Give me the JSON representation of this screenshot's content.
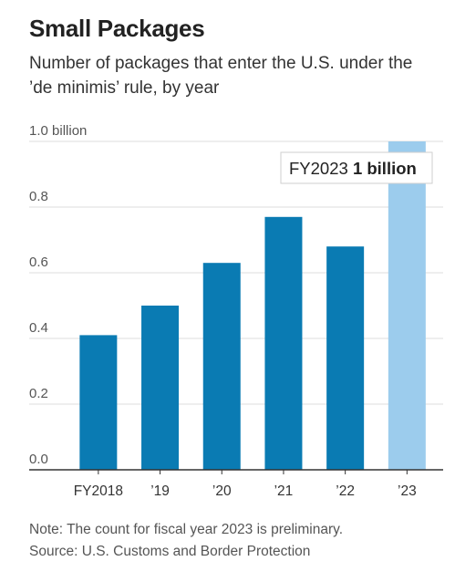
{
  "header": {
    "title": "Small Packages",
    "subtitle": "Number of packages that enter the U.S. under the ’de minimis’ rule, by year"
  },
  "chart_data": {
    "type": "bar",
    "categories": [
      "FY2018",
      "’19",
      "’20",
      "’21",
      "’22",
      "’23"
    ],
    "values": [
      0.41,
      0.5,
      0.63,
      0.77,
      0.68,
      1.0
    ],
    "y_unit": "billion",
    "ylim": [
      0,
      1.0
    ],
    "yticks": [
      0.0,
      0.2,
      0.4,
      0.6,
      0.8,
      1.0
    ],
    "ytick_labels": [
      "0.0",
      "0.2",
      "0.4",
      "0.6",
      "0.8",
      "1.0 billion"
    ],
    "grid": true,
    "colors": {
      "bar": "#0a7bb3",
      "highlight": "#9ccced",
      "grid": "#dcdcdc",
      "axis": "#333333"
    },
    "highlight_index": 5,
    "annotation": {
      "label": "FY2023",
      "value_text": "1 billion"
    }
  },
  "footer": {
    "note": "Note: The count for fiscal year 2023 is preliminary.",
    "source": "Source: U.S. Customs and Border Protection"
  }
}
